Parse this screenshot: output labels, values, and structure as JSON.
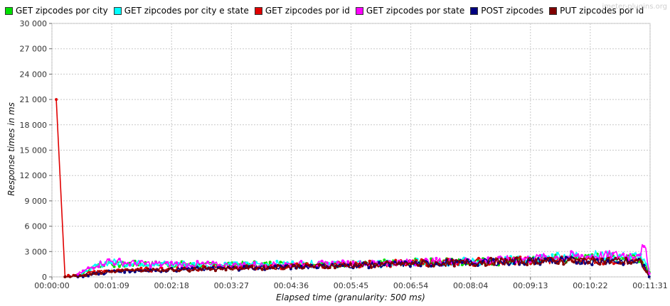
{
  "watermark": "jmeter-plugins.org",
  "chart_data": {
    "type": "line",
    "xlabel": "Elapsed time (granularity: 500 ms)",
    "ylabel": "Response times in ms",
    "x_ticks": [
      "00:00:00",
      "00:01:09",
      "00:02:18",
      "00:03:27",
      "00:04:36",
      "00:05:45",
      "00:06:54",
      "00:08:04",
      "00:09:13",
      "00:10:22",
      "00:11:31"
    ],
    "x_range_seconds": [
      0,
      691
    ],
    "ylim": [
      0,
      30000
    ],
    "y_ticks": [
      0,
      3000,
      6000,
      9000,
      12000,
      15000,
      18000,
      21000,
      24000,
      27000,
      30000
    ],
    "y_tick_labels": [
      "0",
      "3 000",
      "6 000",
      "9 000",
      "12 000",
      "15 000",
      "18 000",
      "21 000",
      "24 000",
      "27 000",
      "30 000"
    ],
    "grid": true,
    "legend_position": "top",
    "series": [
      {
        "name": "GET zipcodes por city",
        "color": "#00e000",
        "points": [
          [
            30,
            200
          ],
          [
            50,
            1200
          ],
          [
            65,
            1700
          ],
          [
            75,
            1500
          ],
          [
            90,
            1500
          ],
          [
            110,
            1500
          ],
          [
            140,
            1500
          ],
          [
            180,
            1400
          ],
          [
            220,
            1500
          ],
          [
            260,
            1500
          ],
          [
            300,
            1500
          ],
          [
            340,
            1500
          ],
          [
            380,
            1600
          ],
          [
            420,
            1700
          ],
          [
            460,
            1800
          ],
          [
            500,
            1800
          ],
          [
            540,
            1900
          ],
          [
            580,
            2100
          ],
          [
            620,
            2200
          ],
          [
            650,
            2400
          ],
          [
            680,
            2400
          ],
          [
            690,
            700
          ]
        ]
      },
      {
        "name": "GET zipcodes por city e state",
        "color": "#00ffff",
        "points": [
          [
            32,
            200
          ],
          [
            52,
            1300
          ],
          [
            68,
            1800
          ],
          [
            80,
            1600
          ],
          [
            95,
            1600
          ],
          [
            120,
            1600
          ],
          [
            150,
            1500
          ],
          [
            190,
            1400
          ],
          [
            230,
            1500
          ],
          [
            270,
            1500
          ],
          [
            310,
            1600
          ],
          [
            350,
            1500
          ],
          [
            390,
            1600
          ],
          [
            430,
            1700
          ],
          [
            470,
            1800
          ],
          [
            510,
            1900
          ],
          [
            550,
            2000
          ],
          [
            590,
            2500
          ],
          [
            620,
            2600
          ],
          [
            650,
            2400
          ],
          [
            680,
            2400
          ],
          [
            690,
            800
          ]
        ]
      },
      {
        "name": "GET zipcodes por id",
        "color": "#e00000",
        "points": [
          [
            5,
            21000
          ],
          [
            15,
            50
          ],
          [
            30,
            200
          ],
          [
            50,
            600
          ],
          [
            80,
            800
          ],
          [
            120,
            900
          ],
          [
            160,
            1000
          ],
          [
            200,
            1100
          ],
          [
            240,
            1200
          ],
          [
            280,
            1300
          ],
          [
            320,
            1400
          ],
          [
            360,
            1500
          ],
          [
            400,
            1600
          ],
          [
            440,
            1700
          ],
          [
            480,
            1800
          ],
          [
            520,
            1900
          ],
          [
            560,
            1900
          ],
          [
            600,
            2000
          ],
          [
            640,
            2000
          ],
          [
            680,
            1800
          ],
          [
            690,
            100
          ]
        ]
      },
      {
        "name": "GET zipcodes por state",
        "color": "#ff00ff",
        "points": [
          [
            30,
            300
          ],
          [
            50,
            1400
          ],
          [
            65,
            1900
          ],
          [
            80,
            1700
          ],
          [
            100,
            1600
          ],
          [
            130,
            1500
          ],
          [
            160,
            1500
          ],
          [
            200,
            1400
          ],
          [
            240,
            1400
          ],
          [
            280,
            1500
          ],
          [
            320,
            1500
          ],
          [
            360,
            1600
          ],
          [
            400,
            1700
          ],
          [
            440,
            1800
          ],
          [
            480,
            1900
          ],
          [
            520,
            2000
          ],
          [
            560,
            2200
          ],
          [
            600,
            2400
          ],
          [
            640,
            2500
          ],
          [
            670,
            2600
          ],
          [
            685,
            3300
          ],
          [
            690,
            600
          ]
        ]
      },
      {
        "name": "POST zipcodes",
        "color": "#000080",
        "points": [
          [
            30,
            100
          ],
          [
            50,
            400
          ],
          [
            80,
            700
          ],
          [
            120,
            800
          ],
          [
            160,
            900
          ],
          [
            200,
            1000
          ],
          [
            240,
            1100
          ],
          [
            280,
            1200
          ],
          [
            320,
            1300
          ],
          [
            360,
            1400
          ],
          [
            400,
            1500
          ],
          [
            440,
            1600
          ],
          [
            480,
            1700
          ],
          [
            520,
            1800
          ],
          [
            560,
            1900
          ],
          [
            600,
            1900
          ],
          [
            640,
            1900
          ],
          [
            680,
            1800
          ],
          [
            690,
            100
          ]
        ]
      },
      {
        "name": "PUT zipcodes por id",
        "color": "#800000",
        "points": [
          [
            15,
            0
          ],
          [
            30,
            100
          ],
          [
            50,
            500
          ],
          [
            80,
            700
          ],
          [
            120,
            800
          ],
          [
            160,
            900
          ],
          [
            200,
            1000
          ],
          [
            240,
            1100
          ],
          [
            280,
            1200
          ],
          [
            320,
            1300
          ],
          [
            360,
            1400
          ],
          [
            400,
            1500
          ],
          [
            440,
            1600
          ],
          [
            480,
            1700
          ],
          [
            520,
            1800
          ],
          [
            560,
            1900
          ],
          [
            600,
            1900
          ],
          [
            640,
            2000
          ],
          [
            680,
            1700
          ],
          [
            690,
            0
          ]
        ]
      }
    ]
  }
}
